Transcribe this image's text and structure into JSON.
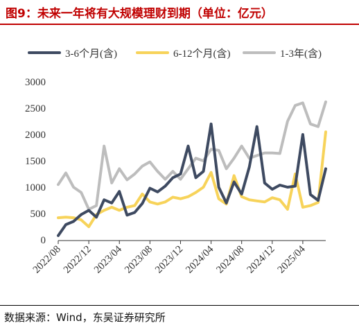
{
  "title": "图9：未来一年将有大规模理财到期（单位：亿元）",
  "source": "数据来源：Wind，东吴证券研究所",
  "colors": {
    "title": "#c00000",
    "series": [
      "#3e4a61",
      "#f7d35a",
      "#bdbdbd"
    ]
  },
  "chart_data": {
    "type": "line",
    "ylim": [
      0,
      3000
    ],
    "yticks": [
      0,
      500,
      1000,
      1500,
      2000,
      2500,
      3000
    ],
    "xlabels": [
      "2022/08",
      "2022/12",
      "2023/04",
      "2023/08",
      "2023/12",
      "2024/04",
      "2024/08",
      "2024/12",
      "2025/04"
    ],
    "legend_position": "top",
    "grid": false,
    "x": [
      "2022/08",
      "2022/09",
      "2022/10",
      "2022/11",
      "2022/12",
      "2023/01",
      "2023/02",
      "2023/03",
      "2023/04",
      "2023/05",
      "2023/06",
      "2023/07",
      "2023/08",
      "2023/09",
      "2023/10",
      "2023/11",
      "2023/12",
      "2024/01",
      "2024/02",
      "2024/03",
      "2024/04",
      "2024/05",
      "2024/06",
      "2024/07",
      "2024/08",
      "2024/09",
      "2024/10",
      "2024/11",
      "2024/12",
      "2025/01",
      "2025/02",
      "2025/03",
      "2025/04",
      "2025/05",
      "2025/06",
      "2025/07"
    ],
    "series": [
      {
        "name": "3-6个月(含)",
        "values": [
          80,
          290,
          350,
          480,
          560,
          430,
          760,
          700,
          920,
          470,
          520,
          690,
          980,
          910,
          1020,
          1180,
          1250,
          1780,
          1180,
          1300,
          2200,
          1000,
          700,
          1100,
          870,
          1380,
          2150,
          1080,
          960,
          1040,
          1000,
          1020,
          2000,
          860,
          750,
          1350
        ]
      },
      {
        "name": "6-12个月(含)",
        "values": [
          420,
          430,
          420,
          380,
          250,
          480,
          560,
          620,
          560,
          620,
          650,
          870,
          720,
          680,
          720,
          810,
          780,
          820,
          900,
          1000,
          1280,
          780,
          680,
          1220,
          820,
          760,
          740,
          720,
          800,
          760,
          580,
          1250,
          620,
          650,
          710,
          2050
        ]
      },
      {
        "name": "1-3年(含)",
        "values": [
          1050,
          1270,
          1000,
          900,
          580,
          650,
          1780,
          1080,
          1350,
          1140,
          1250,
          1400,
          1480,
          1300,
          1150,
          1300,
          1150,
          1350,
          1550,
          1500,
          1720,
          1700,
          1350,
          1550,
          1780,
          1550,
          1600,
          1650,
          1650,
          1640,
          2250,
          2550,
          2600,
          2200,
          2150,
          2620
        ]
      }
    ]
  }
}
